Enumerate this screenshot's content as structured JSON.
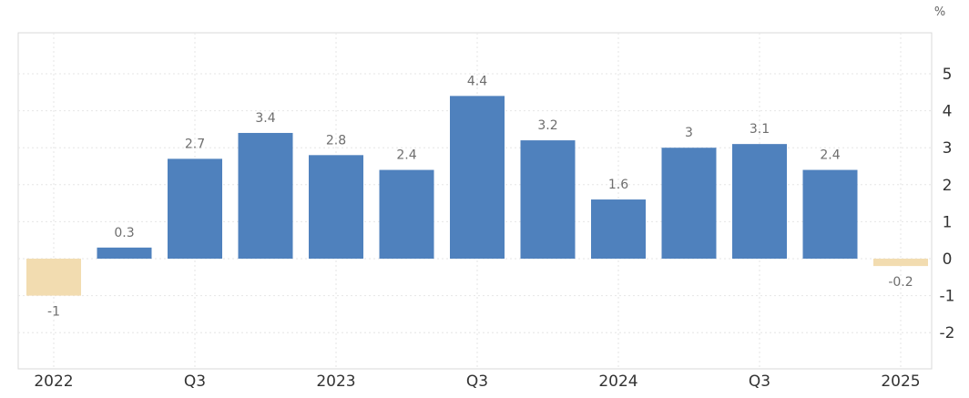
{
  "chart_data": {
    "type": "bar",
    "categories": [
      "2022 Q1",
      "2022 Q2",
      "2022 Q3",
      "2022 Q4",
      "2023 Q1",
      "2023 Q2",
      "2023 Q3",
      "2023 Q4",
      "2024 Q1",
      "2024 Q2",
      "2024 Q3",
      "2024 Q4",
      "2025 Q1"
    ],
    "values": [
      -1,
      0.3,
      2.7,
      3.4,
      2.8,
      2.4,
      4.4,
      3.2,
      1.6,
      3,
      3.1,
      2.4,
      -0.2
    ],
    "value_labels": [
      "-1",
      "0.3",
      "2.7",
      "3.4",
      "2.8",
      "2.4",
      "4.4",
      "3.2",
      "1.6",
      "3",
      "3.1",
      "2.4",
      "-0.2"
    ],
    "x_tick_labels": [
      "2022",
      "Q3",
      "2023",
      "Q3",
      "2024",
      "Q3",
      "2025"
    ],
    "x_tick_category_index": [
      0,
      2,
      4,
      6,
      8,
      10,
      12
    ],
    "y_ticks": [
      -2,
      -1,
      0,
      1,
      2,
      3,
      4,
      5
    ],
    "y_tick_labels": [
      "-2",
      "-1",
      "0",
      "1",
      "2",
      "3",
      "4",
      "5"
    ],
    "ylim": [
      -3,
      6
    ],
    "unit_label": "%",
    "grid": true,
    "colors": {
      "positive": "#4f81bd",
      "negative": "#f2dcb0"
    },
    "title": "",
    "xlabel": "",
    "ylabel": ""
  }
}
